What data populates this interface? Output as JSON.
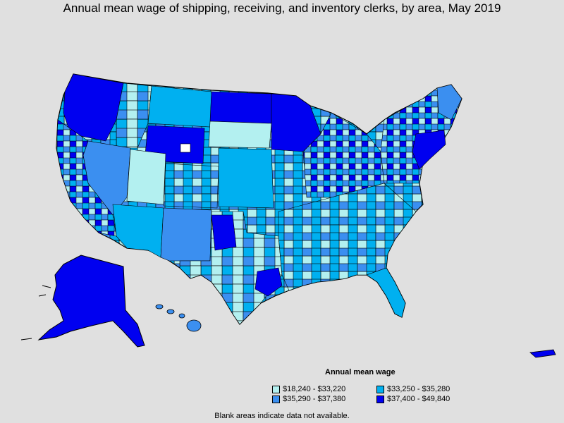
{
  "title": "Annual mean wage of shipping, receiving, and inventory clerks, by area, May 2019",
  "legend": {
    "title": "Annual mean wage",
    "items": [
      {
        "label": "$18,240 - $33,220",
        "color": "#b3f0f0"
      },
      {
        "label": "$33,250 - $35,280",
        "color": "#00b0f0"
      },
      {
        "label": "$35,290 - $37,380",
        "color": "#3b8ff0"
      },
      {
        "label": "$37,400 - $49,840",
        "color": "#0000f0"
      }
    ]
  },
  "note": "Blank areas indicate data not available.",
  "colors": {
    "background": "#e0e0e0",
    "border": "#000000",
    "no_data": "#ffffff"
  }
}
